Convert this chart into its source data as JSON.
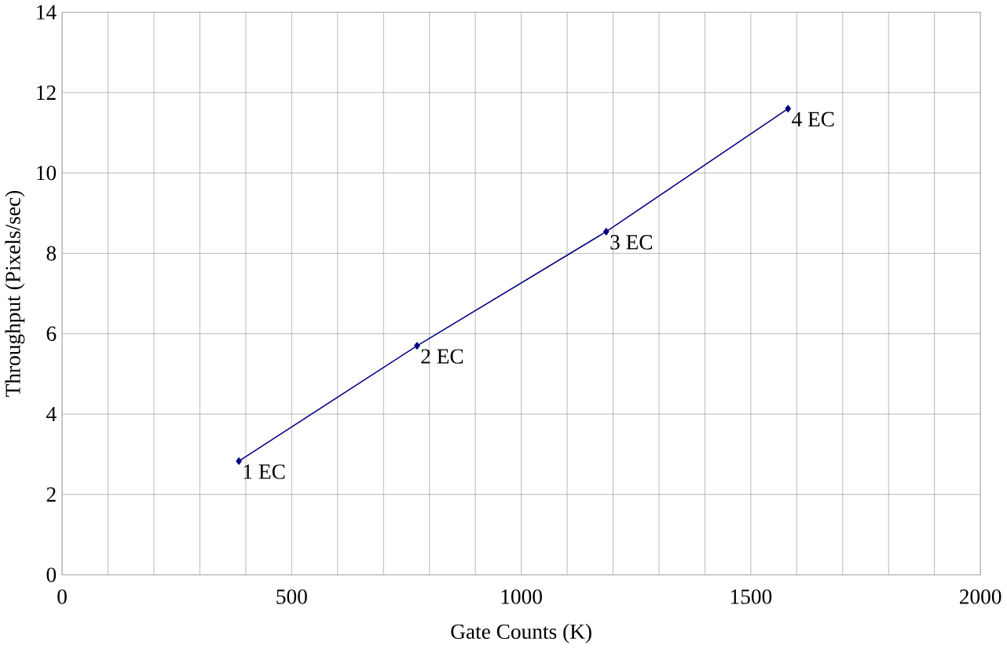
{
  "chart_data": {
    "type": "line",
    "xlabel": "Gate Counts (K)",
    "ylabel": "Throughput (Pixels/sec)",
    "x": [
      385,
      773,
      1185,
      1581
    ],
    "series": [
      {
        "color": "#000080",
        "values": [
          2.83,
          5.7,
          8.54,
          11.6
        ]
      }
    ],
    "xlim": [
      0,
      2000
    ],
    "ylim": [
      0,
      14
    ],
    "xticks": [
      0,
      {
        "value": 100,
        "label": null
      },
      {
        "value": 200,
        "label": null
      },
      {
        "value": 300,
        "label": null
      },
      {
        "value": 400,
        "label": null
      },
      500,
      {
        "value": 600,
        "label": null
      },
      {
        "value": 700,
        "label": null
      },
      {
        "value": 800,
        "label": null
      },
      {
        "value": 900,
        "label": null
      },
      1000,
      {
        "value": 1100,
        "label": null
      },
      {
        "value": 1200,
        "label": null
      },
      {
        "value": 1300,
        "label": null
      },
      {
        "value": 1400,
        "label": null
      },
      1500,
      {
        "value": 1600,
        "label": null
      },
      {
        "value": 1700,
        "label": null
      },
      {
        "value": 1800,
        "label": null
      },
      {
        "value": 1900,
        "label": null
      },
      2000
    ],
    "yticks": [
      0,
      2,
      4,
      6,
      8,
      10,
      12,
      14
    ],
    "grid": true,
    "marker": "diamond",
    "line_style": "solid",
    "annotations": [
      {
        "text": "1 EC",
        "x": 385,
        "y": 2.83
      },
      {
        "text": "2 EC",
        "x": 773,
        "y": 5.7
      },
      {
        "text": "3 EC",
        "x": 1185,
        "y": 8.54
      },
      {
        "text": "4 EC",
        "x": 1581,
        "y": 11.6
      }
    ]
  }
}
